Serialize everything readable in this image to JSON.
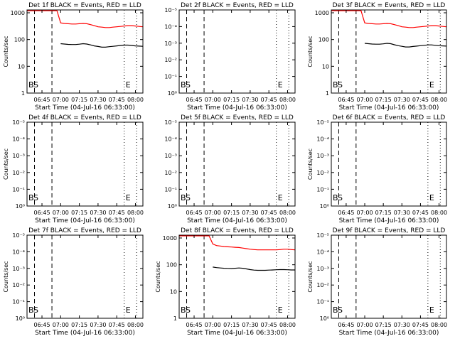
{
  "figure": {
    "xlabel": "Start Time (04-Jul-16 06:33:00)"
  },
  "chart_data": [
    {
      "type": "line",
      "title": "Det 1f BLACK = Events, RED = LLD",
      "ylabel": "Counts/sec",
      "x_ticks": [
        "06:45",
        "07:00",
        "07:15",
        "07:30",
        "07:45",
        "08:00"
      ],
      "y_ticks": [
        "1",
        "10",
        "100",
        "1000"
      ],
      "y_scale": "log",
      "markers": [
        "B",
        "S",
        "E"
      ],
      "series": [
        {
          "name": "LLD",
          "color": "#ff0000",
          "x": [
            0,
            3,
            6,
            9,
            12,
            15,
            18,
            21,
            24,
            27,
            30,
            33,
            36,
            39,
            42,
            45,
            48,
            51,
            54,
            57,
            60,
            63,
            66,
            69,
            72,
            75,
            78,
            81,
            84,
            87,
            90,
            93
          ],
          "y": [
            1000,
            1000,
            1000,
            1000,
            1000,
            1000,
            1000,
            1000,
            1000,
            420,
            400,
            390,
            380,
            380,
            390,
            400,
            390,
            360,
            330,
            300,
            290,
            280,
            280,
            290,
            300,
            310,
            320,
            330,
            330,
            320,
            310,
            300
          ]
        },
        {
          "name": "Events",
          "color": "#000000",
          "x": [
            27,
            30,
            33,
            36,
            39,
            42,
            45,
            48,
            51,
            54,
            57,
            60,
            63,
            66,
            69,
            72,
            75,
            78,
            81,
            84,
            87,
            90,
            93
          ],
          "y": [
            70,
            68,
            66,
            65,
            65,
            67,
            70,
            68,
            63,
            58,
            55,
            52,
            52,
            54,
            56,
            58,
            60,
            62,
            62,
            60,
            58,
            57,
            56
          ]
        }
      ]
    },
    {
      "type": "line",
      "title": "Det 2f BLACK = Events, RED = LLD",
      "x_ticks": [
        "06:45",
        "07:00",
        "07:15",
        "07:30",
        "07:45",
        "08:00"
      ],
      "y_ticks": [
        "10⁰",
        "10⁻¹",
        "10⁻²",
        "10⁻³",
        "10⁻⁴",
        "10⁻⁵"
      ],
      "markers": [
        "B",
        "S",
        "E"
      ],
      "series": []
    },
    {
      "type": "line",
      "title": "Det 3f BLACK = Events, RED = LLD",
      "ylabel": "Counts/sec",
      "x_ticks": [
        "06:45",
        "07:00",
        "07:15",
        "07:30",
        "07:45",
        "08:00"
      ],
      "y_ticks": [
        "1",
        "10",
        "100",
        "1000"
      ],
      "y_scale": "log",
      "markers": [
        "B",
        "S",
        "E"
      ],
      "series": [
        {
          "name": "LLD",
          "color": "#ff0000",
          "x": [
            0,
            3,
            6,
            9,
            12,
            15,
            18,
            21,
            24,
            27,
            30,
            33,
            36,
            39,
            42,
            45,
            48,
            51,
            54,
            57,
            60,
            63,
            66,
            69,
            72,
            75,
            78,
            81,
            84,
            87,
            90,
            93
          ],
          "y": [
            1000,
            1000,
            1000,
            1000,
            1000,
            1000,
            1000,
            1000,
            1000,
            420,
            400,
            390,
            380,
            380,
            390,
            400,
            390,
            360,
            330,
            300,
            290,
            280,
            280,
            290,
            300,
            310,
            320,
            330,
            330,
            320,
            310,
            300
          ]
        },
        {
          "name": "Events",
          "color": "#000000",
          "x": [
            27,
            30,
            33,
            36,
            39,
            42,
            45,
            48,
            51,
            54,
            57,
            60,
            63,
            66,
            69,
            72,
            75,
            78,
            81,
            84,
            87,
            90,
            93
          ],
          "y": [
            72,
            70,
            68,
            67,
            67,
            69,
            72,
            70,
            64,
            59,
            56,
            53,
            53,
            55,
            57,
            59,
            61,
            63,
            63,
            61,
            59,
            58,
            57
          ]
        }
      ]
    },
    {
      "type": "line",
      "title": "Det 4f BLACK = Events, RED = LLD",
      "ylabel": "Counts/sec",
      "x_ticks": [
        "06:45",
        "07:00",
        "07:15",
        "07:30",
        "07:45",
        "08:00"
      ],
      "y_ticks": [
        "10⁰",
        "10⁻¹",
        "10⁻²",
        "10⁻³",
        "10⁻⁴",
        "10⁻⁵"
      ],
      "markers": [
        "B",
        "S",
        "E"
      ],
      "series": []
    },
    {
      "type": "line",
      "title": "Det 5f BLACK = Events, RED = LLD",
      "x_ticks": [
        "06:45",
        "07:00",
        "07:15",
        "07:30",
        "07:45",
        "08:00"
      ],
      "y_ticks": [
        "10⁰",
        "10⁻¹",
        "10⁻²",
        "10⁻³",
        "10⁻⁴",
        "10⁻⁵"
      ],
      "markers": [
        "B",
        "S",
        "E"
      ],
      "series": []
    },
    {
      "type": "line",
      "title": "Det 6f BLACK = Events, RED = LLD",
      "ylabel": "Counts/sec",
      "x_ticks": [
        "06:45",
        "07:00",
        "07:15",
        "07:30",
        "07:45",
        "08:00"
      ],
      "y_ticks": [
        "10⁰",
        "10⁻¹",
        "10⁻²",
        "10⁻³",
        "10⁻⁴",
        "10⁻⁵"
      ],
      "markers": [
        "B",
        "S",
        "E"
      ],
      "series": []
    },
    {
      "type": "line",
      "title": "Det 7f BLACK = Events, RED = LLD",
      "ylabel": "Counts/sec",
      "x_ticks": [
        "06:45",
        "07:00",
        "07:15",
        "07:30",
        "07:45",
        "08:00"
      ],
      "y_ticks": [
        "10⁰",
        "10⁻¹",
        "10⁻²",
        "10⁻³",
        "10⁻⁴",
        "10⁻⁵"
      ],
      "markers": [
        "B",
        "S",
        "E"
      ],
      "series": []
    },
    {
      "type": "line",
      "title": "Det 8f BLACK = Events, RED = LLD",
      "ylabel": "Counts/sec",
      "x_ticks": [
        "06:45",
        "07:00",
        "07:15",
        "07:30",
        "07:45",
        "08:00"
      ],
      "y_ticks": [
        "1",
        "10",
        "100",
        "1000"
      ],
      "y_scale": "log",
      "markers": [
        "B",
        "S",
        "E"
      ],
      "series": [
        {
          "name": "LLD",
          "color": "#ff0000",
          "x": [
            0,
            3,
            6,
            9,
            12,
            15,
            18,
            21,
            24,
            27,
            30,
            33,
            36,
            39,
            42,
            45,
            48,
            51,
            54,
            57,
            60,
            63,
            66,
            69,
            72,
            75,
            78,
            81,
            84,
            87,
            90,
            93
          ],
          "y": [
            1000,
            1000,
            1000,
            1000,
            1000,
            1000,
            1000,
            1000,
            1000,
            600,
            520,
            500,
            480,
            470,
            460,
            450,
            440,
            420,
            400,
            380,
            370,
            360,
            360,
            360,
            360,
            360,
            360,
            370,
            380,
            380,
            370,
            360
          ]
        },
        {
          "name": "Events",
          "color": "#000000",
          "x": [
            27,
            30,
            33,
            36,
            39,
            42,
            45,
            48,
            51,
            54,
            57,
            60,
            63,
            66,
            69,
            72,
            75,
            78,
            81,
            84,
            87,
            90,
            93
          ],
          "y": [
            82,
            78,
            76,
            74,
            73,
            72,
            74,
            76,
            74,
            70,
            66,
            63,
            62,
            62,
            62,
            63,
            64,
            65,
            66,
            66,
            65,
            64,
            64
          ]
        }
      ]
    },
    {
      "type": "line",
      "title": "Det 9f BLACK = Events, RED = LLD",
      "ylabel": "Counts/sec",
      "x_ticks": [
        "06:45",
        "07:00",
        "07:15",
        "07:30",
        "07:45",
        "08:00"
      ],
      "y_ticks": [
        "10⁰",
        "10⁻¹",
        "10⁻²",
        "10⁻³",
        "10⁻⁴",
        "10⁻⁵"
      ],
      "markers": [
        "B",
        "S",
        "E"
      ],
      "series": []
    }
  ]
}
